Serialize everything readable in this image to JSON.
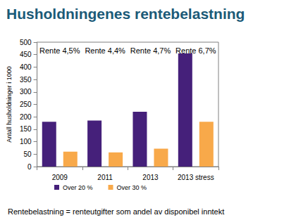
{
  "chart_data": {
    "type": "bar",
    "title": "Husholdningenes rentebelastning",
    "ylabel": "Antall husholdninger i 1000",
    "categories": [
      "2009",
      "2011",
      "2013",
      "2013 stress"
    ],
    "annotations": [
      "Rente 4,5%",
      "Rente 4,4%",
      "Rente 4,7%",
      "Rente 6,7%"
    ],
    "series": [
      {
        "name": "Over 20 %",
        "color": "#45207a",
        "values": [
          180,
          185,
          220,
          455
        ]
      },
      {
        "name": "Over 30 %",
        "color": "#f8a94a",
        "values": [
          60,
          57,
          72,
          180
        ]
      }
    ],
    "ylim": [
      0,
      500
    ],
    "yticks": [
      0,
      50,
      100,
      150,
      200,
      250,
      300,
      350,
      400,
      450,
      500
    ],
    "grid": false,
    "legend": "bottom",
    "footnote": "Rentebelastning = renteutgifter som andel av disponibel inntekt"
  }
}
